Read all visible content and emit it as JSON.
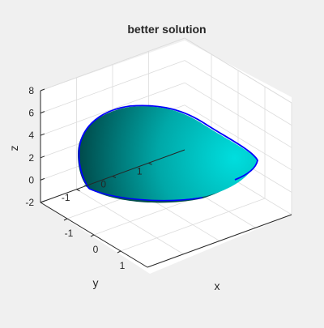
{
  "chart_data": {
    "type": "surface3d",
    "title": "better solution",
    "xlabel": "x",
    "ylabel": "y",
    "zlabel": "z",
    "xlim": [
      -2,
      2
    ],
    "ylim": [
      -2,
      2
    ],
    "zlim": [
      -2,
      8
    ],
    "xticks": [
      -1,
      0,
      1
    ],
    "yticks": [
      -1,
      0,
      1
    ],
    "zticks": [
      -2,
      0,
      2,
      4,
      6,
      8
    ],
    "grid": true,
    "surface_color": "#00c8c8",
    "edge_color": "#0000ff",
    "background": "#f0f0f0",
    "axes_background": "#ffffff"
  }
}
